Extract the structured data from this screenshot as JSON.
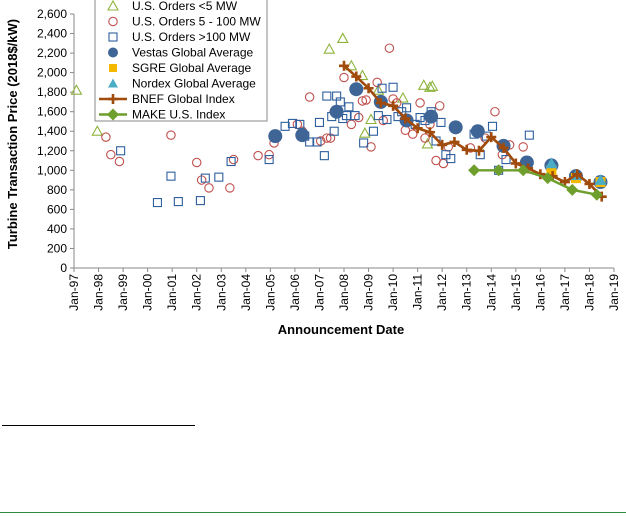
{
  "chart_data": {
    "type": "scatter",
    "title": "",
    "ylabel": "Turbine Transaction Price (2018$/kW)",
    "xlabel": "Announcement Date",
    "ylim": [
      0,
      2600
    ],
    "yticks": [
      0,
      200,
      400,
      600,
      800,
      1000,
      1200,
      1400,
      1600,
      1800,
      2000,
      2200,
      2400,
      2600
    ],
    "ytick_labels": [
      "0",
      "200",
      "400",
      "600",
      "800",
      "1,000",
      "1,200",
      "1,400",
      "1,600",
      "1,800",
      "2,000",
      "2,200",
      "2,400",
      "2,600"
    ],
    "xlim": [
      1997,
      2019
    ],
    "xtick_labels": [
      "Jan-97",
      "Jan-98",
      "Jan-99",
      "Jan-00",
      "Jan-01",
      "Jan-02",
      "Jan-03",
      "Jan-04",
      "Jan-05",
      "Jan-06",
      "Jan-07",
      "Jan-08",
      "Jan-09",
      "Jan-10",
      "Jan-11",
      "Jan-12",
      "Jan-13",
      "Jan-14",
      "Jan-15",
      "Jan-16",
      "Jan-17",
      "Jan-18",
      "Jan-19"
    ],
    "legend_position": "top-left",
    "grid": false,
    "series": [
      {
        "name": "U.S. Orders <5 MW",
        "marker": "triangle-open",
        "color": "#8db33c",
        "x": [
          1997.1,
          1997.95,
          2007.4,
          2007.95,
          2008.3,
          2008.75,
          2008.85,
          2009.1,
          2009.4,
          2010.4,
          2011.25,
          2011.4,
          2011.5,
          2011.6
        ],
        "y": [
          1820,
          1400,
          2240,
          2350,
          2070,
          1970,
          1380,
          1520,
          1820,
          1740,
          1870,
          1270,
          1850,
          1860
        ]
      },
      {
        "name": "U.S. Orders 5 - 100 MW",
        "marker": "circle-open",
        "color": "#c0504d",
        "x": [
          1998.3,
          1998.5,
          1998.85,
          2000.95,
          2002.0,
          2002.2,
          2002.5,
          2003.35,
          2003.5,
          2004.5,
          2004.95,
          2005.15,
          2006.1,
          2006.3,
          2006.6,
          2007.05,
          2007.3,
          2007.45,
          2007.6,
          2008.0,
          2008.3,
          2008.6,
          2008.75,
          2008.9,
          2009.1,
          2009.35,
          2009.6,
          2009.85,
          2010.0,
          2010.15,
          2010.5,
          2010.8,
          2011.1,
          2011.3,
          2011.5,
          2011.75,
          2011.9,
          2012.05,
          2012.25,
          2013.15,
          2013.5,
          2013.75,
          2014.15,
          2014.45,
          2014.75,
          2015.3
        ],
        "y": [
          1340,
          1160,
          1090,
          1360,
          1080,
          900,
          820,
          820,
          1110,
          1150,
          1160,
          1280,
          1470,
          1400,
          1750,
          1300,
          1330,
          1330,
          1600,
          1950,
          1470,
          1540,
          1710,
          1720,
          1240,
          1900,
          1510,
          2250,
          1730,
          1690,
          1410,
          1370,
          1690,
          1330,
          1470,
          1100,
          1660,
          1070,
          1240,
          1230,
          1410,
          1330,
          1600,
          1160,
          1260,
          1240
        ]
      },
      {
        "name": "U.S. Orders >100 MW",
        "marker": "square-open",
        "color": "#2e5f9e",
        "x": [
          1998.9,
          2000.4,
          2000.95,
          2001.25,
          2002.15,
          2002.35,
          2002.9,
          2003.4,
          2004.95,
          2005.6,
          2005.9,
          2006.2,
          2006.4,
          2006.6,
          2006.9,
          2007.0,
          2007.2,
          2007.3,
          2007.5,
          2007.6,
          2007.7,
          2007.85,
          2007.95,
          2008.1,
          2008.2,
          2008.45,
          2008.8,
          2009.2,
          2009.4,
          2009.55,
          2009.75,
          2010.0,
          2010.2,
          2010.35,
          2010.55,
          2010.9,
          2011.1,
          2011.3,
          2011.55,
          2011.75,
          2011.95,
          2012.15,
          2012.35,
          2013.3,
          2013.55,
          2013.8,
          2014.05,
          2014.3,
          2014.6,
          2015.55
        ],
        "y": [
          1200,
          670,
          940,
          680,
          690,
          920,
          930,
          1090,
          1110,
          1450,
          1480,
          1470,
          1350,
          1290,
          1290,
          1490,
          1150,
          1760,
          1550,
          1400,
          1760,
          1700,
          1530,
          1560,
          1650,
          1560,
          1280,
          1400,
          1560,
          1840,
          1520,
          1850,
          1550,
          1600,
          1640,
          1470,
          1540,
          1510,
          1600,
          1300,
          1490,
          1160,
          1120,
          1370,
          1160,
          1350,
          1450,
          1000,
          1110,
          1360
        ]
      },
      {
        "name": "Vestas Global Average",
        "marker": "circle-filled",
        "color": "#3f6596",
        "x": [
          2005.2,
          2006.3,
          2007.7,
          2008.5,
          2009.5,
          2010.55,
          2011.55,
          2012.55,
          2013.45,
          2014.5,
          2015.45,
          2016.45,
          2017.45,
          2018.45
        ],
        "y": [
          1350,
          1360,
          1600,
          1830,
          1700,
          1510,
          1550,
          1440,
          1400,
          1250,
          1080,
          1050,
          940,
          880
        ]
      },
      {
        "name": "SGRE Global Average",
        "marker": "square-filled",
        "color": "#f5b800",
        "x": [
          2016.45,
          2017.45,
          2018.45
        ],
        "y": [
          1000,
          920,
          880
        ]
      },
      {
        "name": "Nordex Global Average",
        "marker": "triangle-filled",
        "color": "#4bacc6",
        "x": [
          2016.45,
          2017.45,
          2018.45
        ],
        "y": [
          1070,
          950,
          900
        ]
      },
      {
        "name": "BNEF Global Index",
        "marker": "plus-line",
        "color": "#a04a0c",
        "x": [
          2008.0,
          2008.5,
          2009.0,
          2009.5,
          2010.0,
          2010.5,
          2011.0,
          2011.5,
          2012.0,
          2012.5,
          2013.0,
          2013.5,
          2014.0,
          2014.5,
          2015.0,
          2015.5,
          2016.0,
          2016.5,
          2017.0,
          2017.5,
          2018.0,
          2018.5
        ],
        "y": [
          2070,
          1960,
          1840,
          1690,
          1660,
          1530,
          1430,
          1390,
          1260,
          1290,
          1210,
          1200,
          1340,
          1230,
          1070,
          1020,
          960,
          940,
          880,
          960,
          860,
          730
        ]
      },
      {
        "name": "MAKE U.S. Index",
        "marker": "diamond-line",
        "color": "#6e9e2c",
        "x": [
          2013.3,
          2014.3,
          2015.3,
          2016.3,
          2017.3,
          2018.3
        ],
        "y": [
          1000,
          1000,
          1000,
          920,
          800,
          750
        ]
      }
    ]
  }
}
